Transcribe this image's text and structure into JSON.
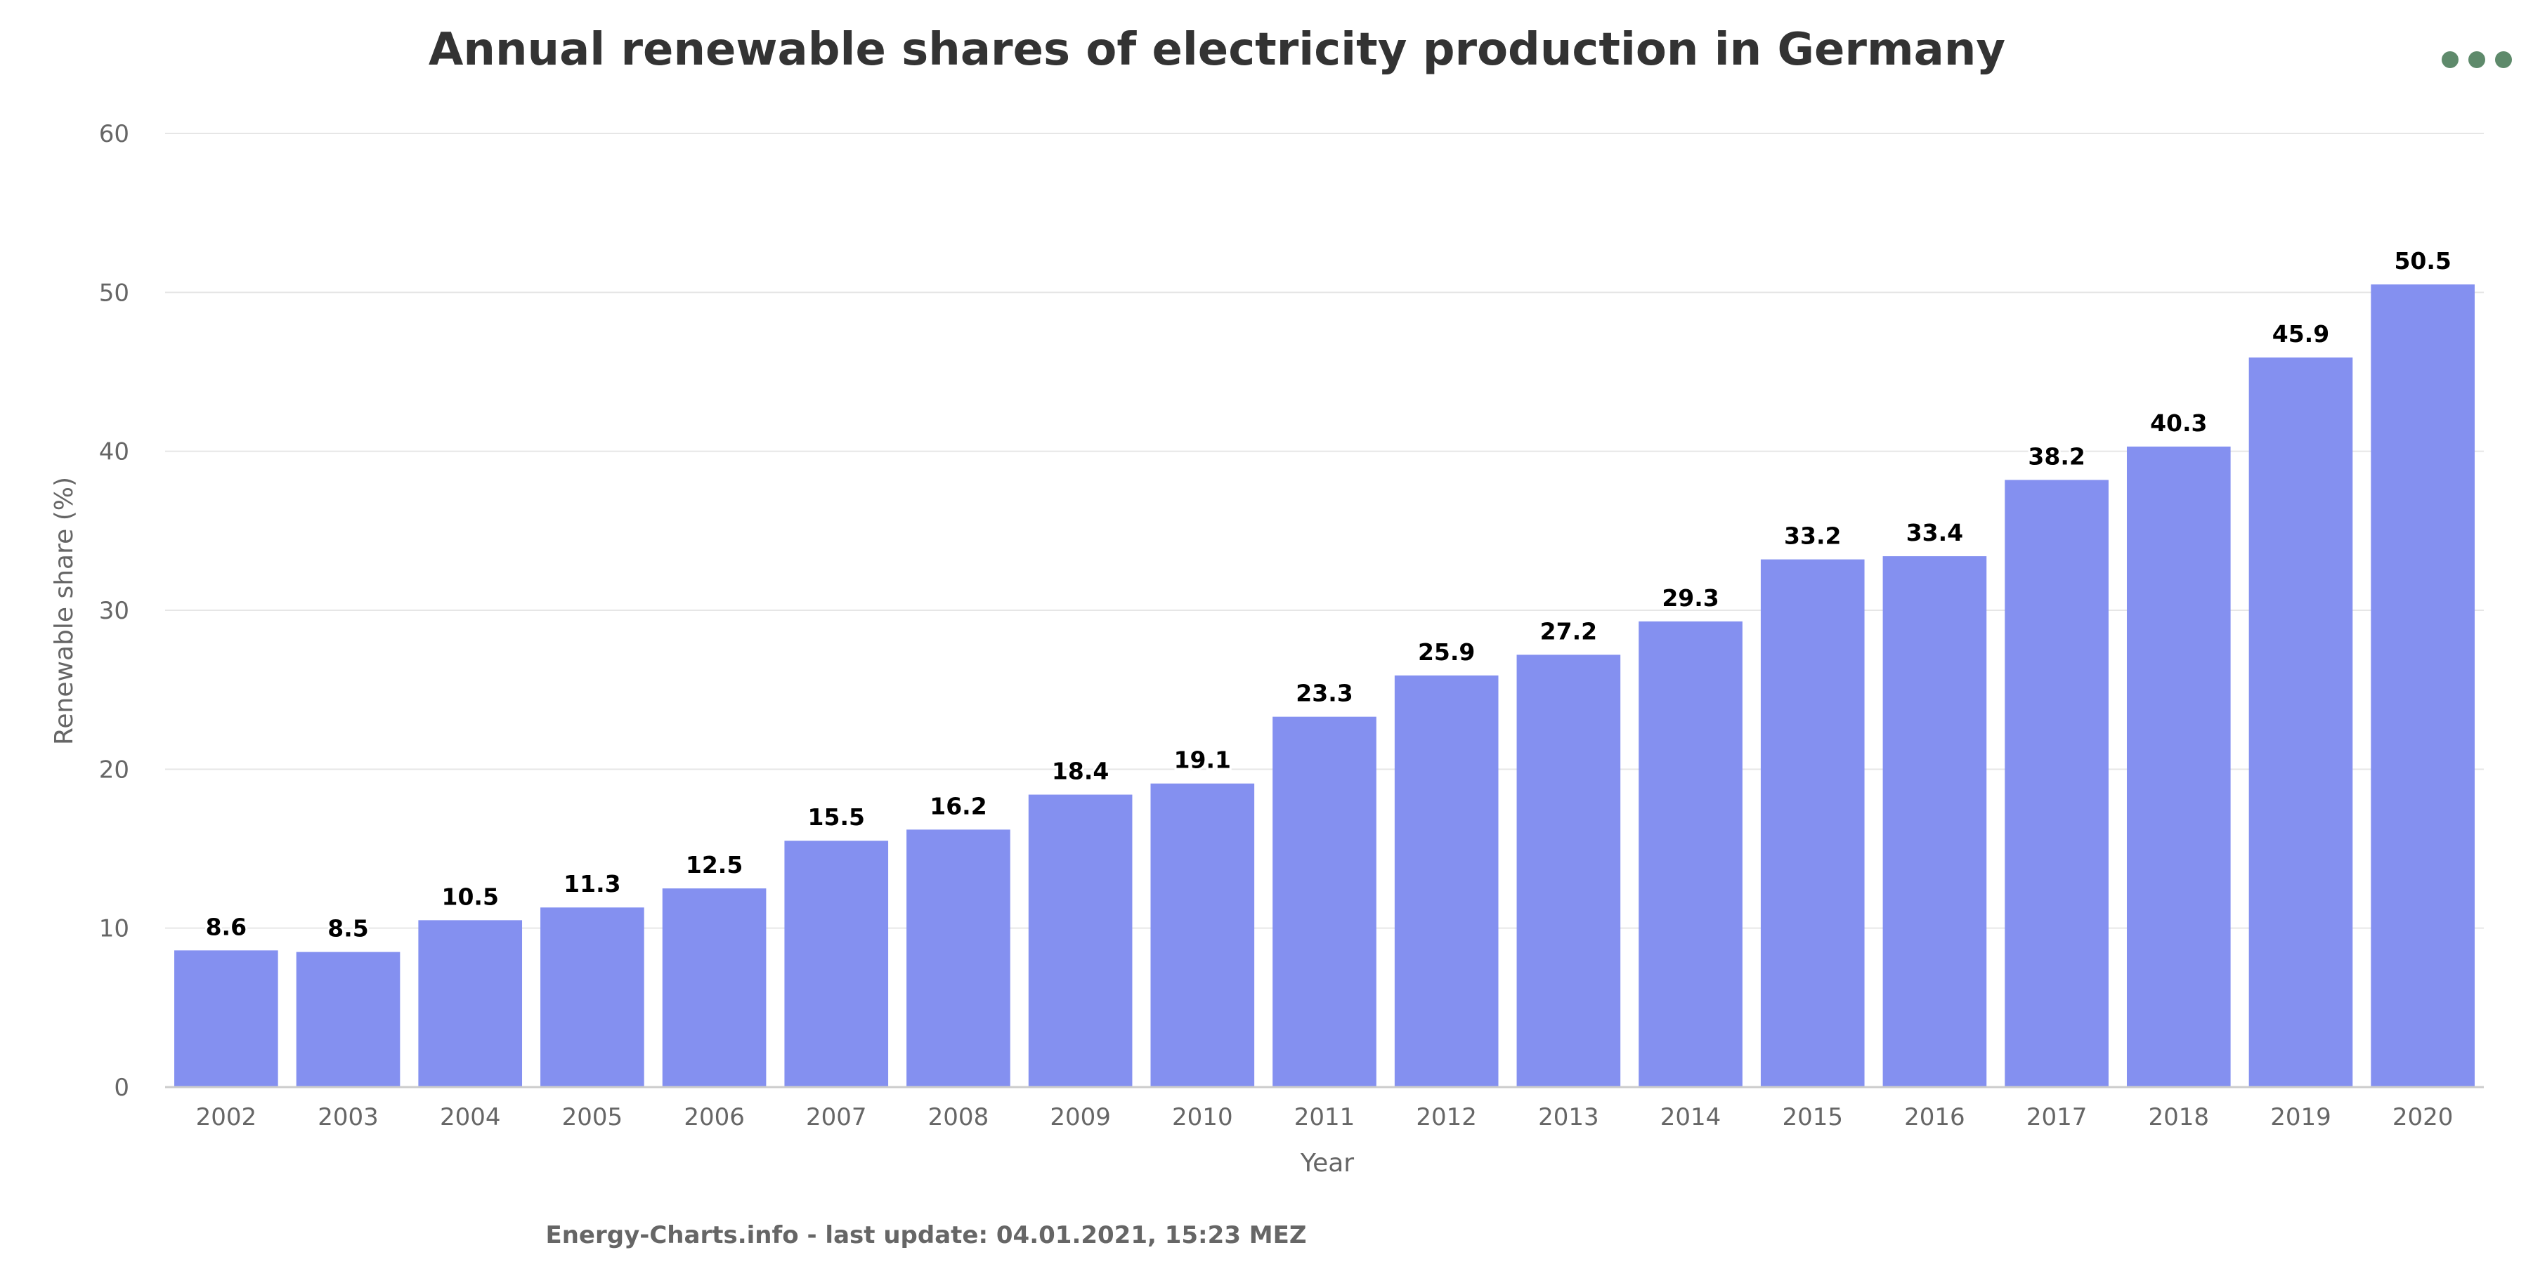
{
  "chart_data": {
    "type": "bar",
    "title": "Annual renewable shares of electricity production in Germany",
    "xlabel": "Year",
    "ylabel": "Renewable share (%)",
    "categories": [
      "2002",
      "2003",
      "2004",
      "2005",
      "2006",
      "2007",
      "2008",
      "2009",
      "2010",
      "2011",
      "2012",
      "2013",
      "2014",
      "2015",
      "2016",
      "2017",
      "2018",
      "2019",
      "2020"
    ],
    "values": [
      8.6,
      8.5,
      10.5,
      11.3,
      12.5,
      15.5,
      16.2,
      18.4,
      19.1,
      23.3,
      25.9,
      27.2,
      29.3,
      33.2,
      33.4,
      38.2,
      40.3,
      45.9,
      50.5
    ],
    "data_labels": [
      "8.6",
      "8.5",
      "10.5",
      "11.3",
      "12.5",
      "15.5",
      "16.2",
      "18.4",
      "19.1",
      "23.3",
      "25.9",
      "27.2",
      "29.3",
      "33.2",
      "33.4",
      "38.2",
      "40.3",
      "45.9",
      "50.5"
    ],
    "ylim": [
      0,
      60
    ],
    "yticks": [
      0,
      10,
      20,
      30,
      40,
      50,
      60
    ],
    "grid": true,
    "legend": "none",
    "colors": {
      "bar": "#8490f0",
      "grid": "#e6e6e6",
      "axis_line": "#cccccc",
      "menu": "#5e8a6b"
    }
  },
  "credits": "Energy-Charts.info - last update: 04.01.2021, 15:23 MEZ",
  "menu": {
    "icon": "ellipsis-icon"
  }
}
